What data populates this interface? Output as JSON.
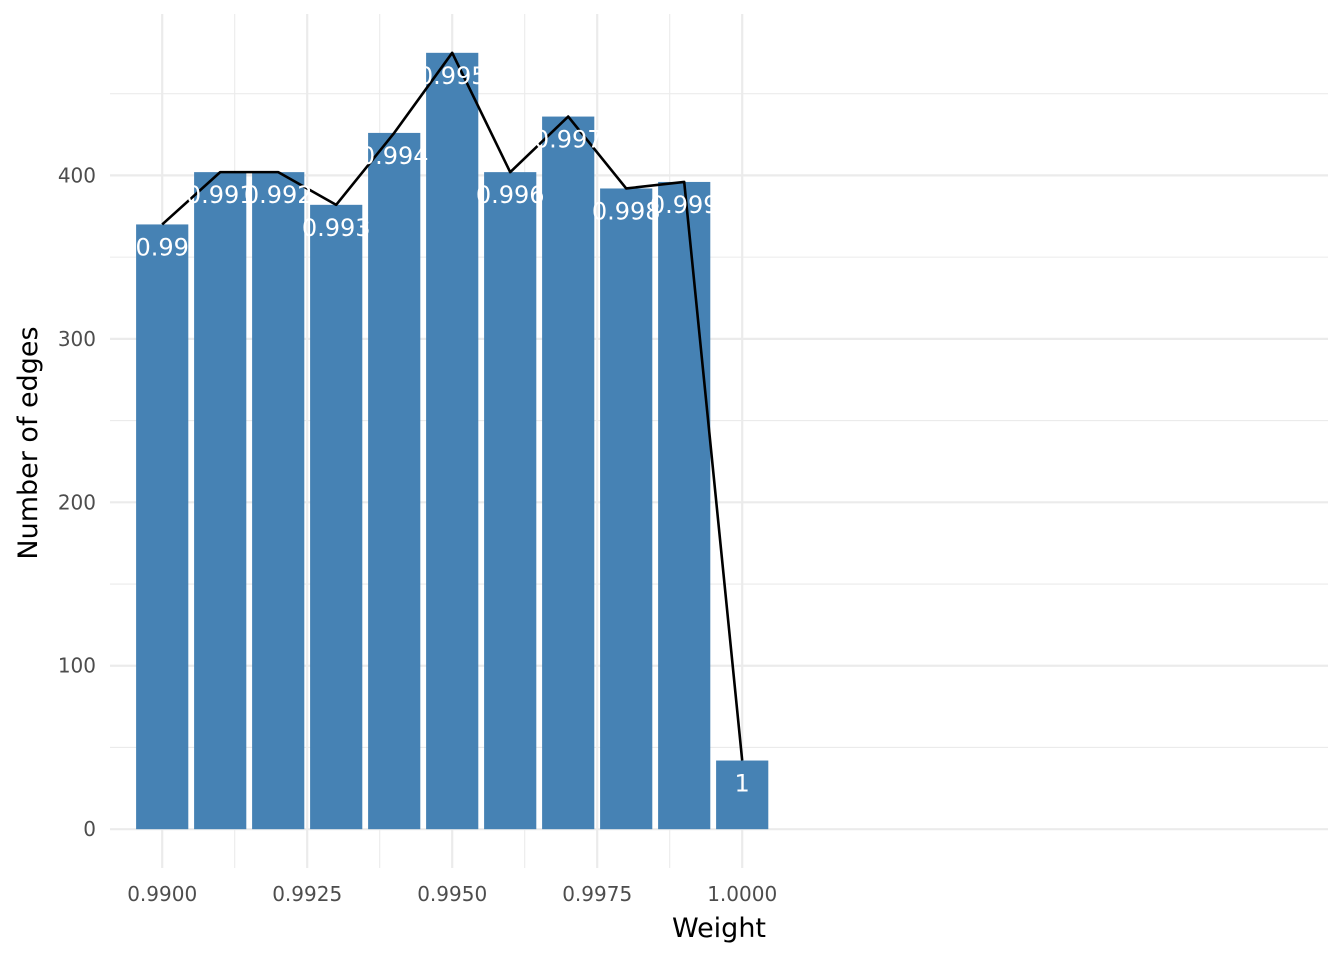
{
  "chart_data": {
    "type": "bar",
    "title": "",
    "xlabel": "Weight",
    "ylabel": "Number of edges",
    "x": [
      0.99,
      0.991,
      0.992,
      0.993,
      0.994,
      0.995,
      0.996,
      0.997,
      0.998,
      0.999,
      1.0
    ],
    "values": [
      370,
      402,
      402,
      382,
      426,
      475,
      402,
      436,
      392,
      396,
      42
    ],
    "bar_labels": [
      "0.99",
      "0.991",
      "0.992",
      "0.993",
      "0.994",
      "0.995",
      "0.996",
      "0.997",
      "0.998",
      "0.999",
      "1"
    ],
    "bar_width": 0.0009,
    "line_overlay": true,
    "xlim": [
      0.9891,
      1.0101
    ],
    "ylim": [
      -23.75,
      498.75
    ],
    "x_ticks": [
      0.99,
      0.9925,
      0.995,
      0.9975,
      1.0
    ],
    "x_tick_labels": [
      "0.9900",
      "0.9925",
      "0.9950",
      "0.9975",
      "1.0000"
    ],
    "y_ticks": [
      0,
      100,
      200,
      300,
      400
    ],
    "y_tick_labels": [
      "0",
      "100",
      "200",
      "300",
      "400"
    ],
    "grid": true,
    "legend": "none",
    "colors": {
      "bar": "#4682b4",
      "line": "#000000",
      "bar_label": "#ffffff",
      "grid": "#ebebeb",
      "tick_label": "#4d4d4d"
    }
  }
}
